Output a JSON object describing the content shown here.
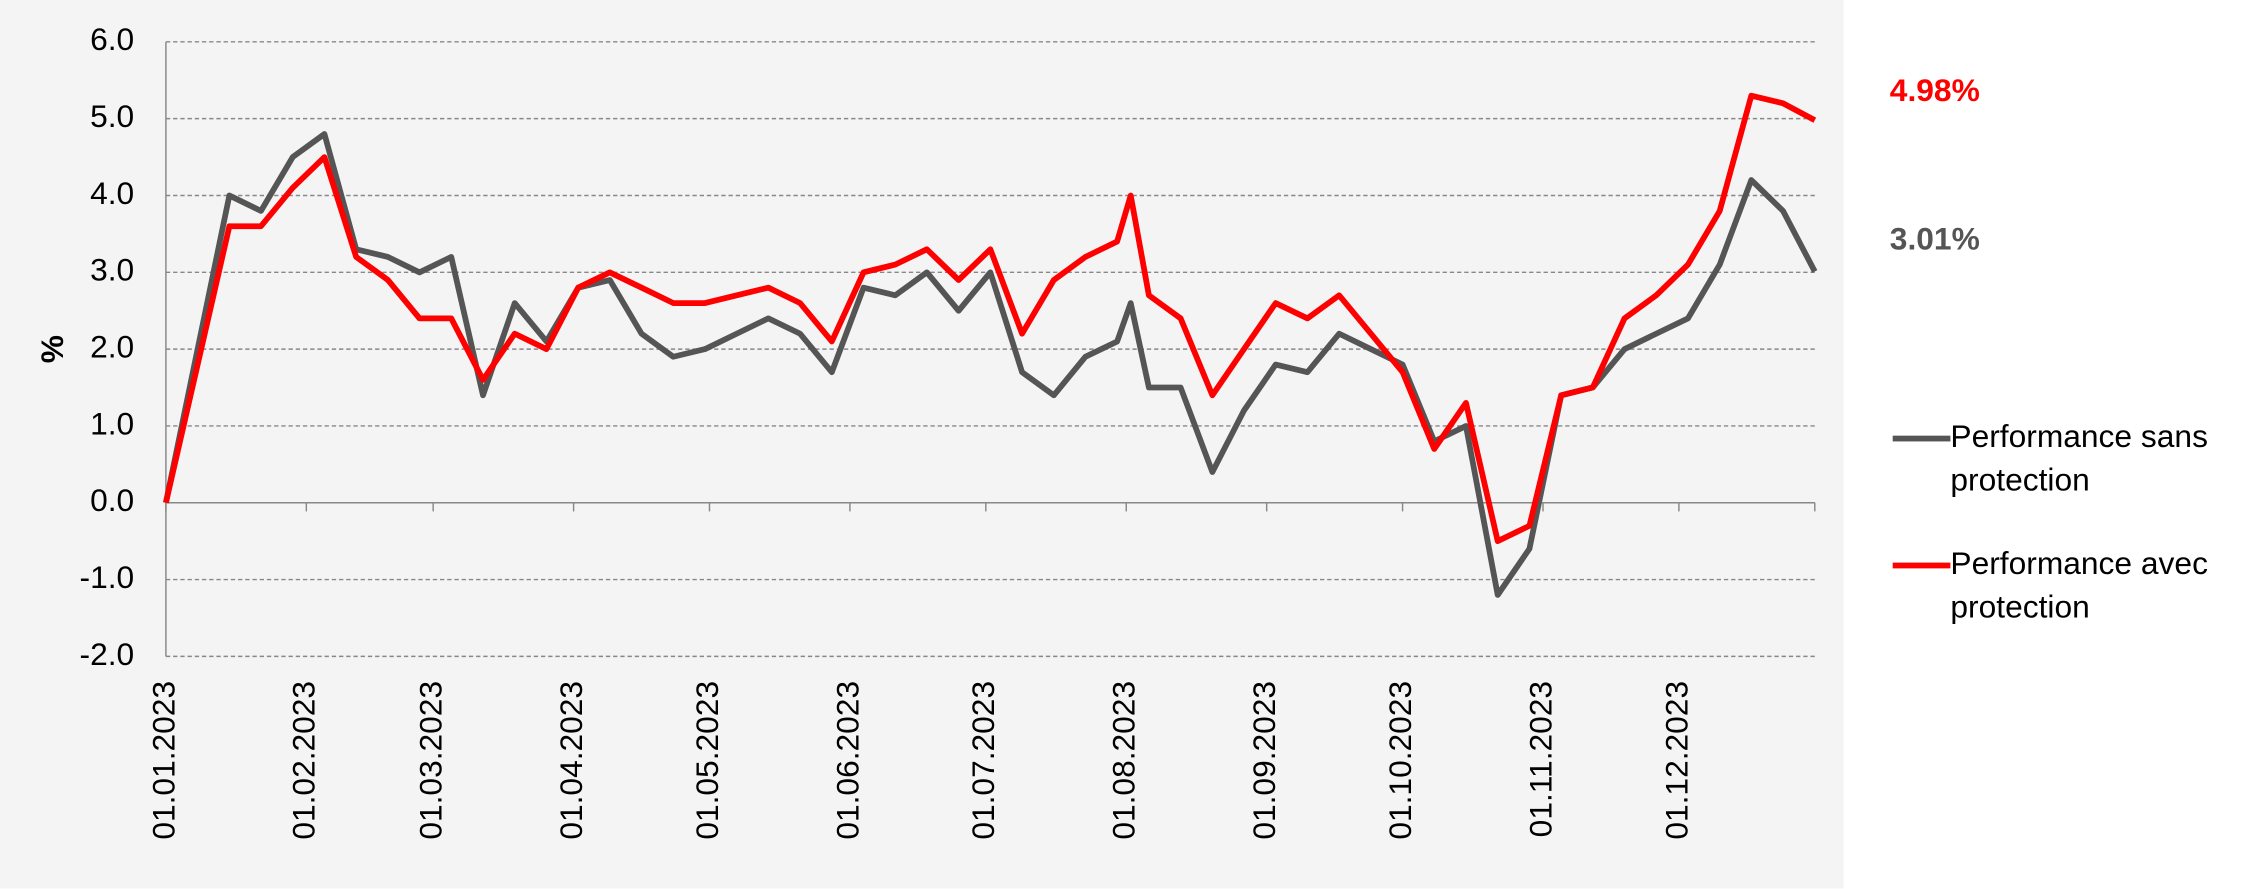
{
  "chart_data": {
    "type": "line",
    "y_label": "%",
    "x": [
      "01.01.2023",
      "08.01.2023",
      "15.01.2023",
      "22.01.2023",
      "29.01.2023",
      "05.02.2023",
      "12.02.2023",
      "19.02.2023",
      "26.02.2023",
      "05.03.2023",
      "12.03.2023",
      "19.03.2023",
      "26.03.2023",
      "02.04.2023",
      "09.04.2023",
      "16.04.2023",
      "23.04.2023",
      "30.04.2023",
      "07.05.2023",
      "14.05.2023",
      "21.05.2023",
      "28.05.2023",
      "04.06.2023",
      "11.06.2023",
      "18.06.2023",
      "25.06.2023",
      "02.07.2023",
      "09.07.2023",
      "16.07.2023",
      "23.07.2023",
      "30.07.2023",
      "02.08.2023",
      "06.08.2023",
      "13.08.2023",
      "20.08.2023",
      "27.08.2023",
      "03.09.2023",
      "10.09.2023",
      "17.09.2023",
      "24.09.2023",
      "01.10.2023",
      "08.10.2023",
      "15.10.2023",
      "22.10.2023",
      "29.10.2023",
      "05.11.2023",
      "12.11.2023",
      "19.11.2023",
      "26.11.2023",
      "03.12.2023",
      "10.12.2023",
      "17.12.2023",
      "24.12.2023",
      "31.12.2023"
    ],
    "series": [
      {
        "name": "Performance sans protection",
        "color": "#555555",
        "values": [
          0,
          2.0,
          4.0,
          3.8,
          4.5,
          4.8,
          3.3,
          3.2,
          3.0,
          3.2,
          1.4,
          2.6,
          2.1,
          2.8,
          2.9,
          2.2,
          1.9,
          2.0,
          2.2,
          2.4,
          2.2,
          1.7,
          2.8,
          2.7,
          3.0,
          2.5,
          3.0,
          1.7,
          1.4,
          1.9,
          2.1,
          2.6,
          1.5,
          1.5,
          0.4,
          1.2,
          1.8,
          1.7,
          2.2,
          2.0,
          1.8,
          0.8,
          1.0,
          -1.2,
          -0.6,
          1.4,
          1.5,
          2.0,
          2.2,
          2.4,
          3.1,
          4.2,
          3.8,
          3.01
        ]
      },
      {
        "name": "Performance avec protection",
        "color": "#ff0000",
        "values": [
          0,
          1.8,
          3.6,
          3.6,
          4.1,
          4.5,
          3.2,
          2.9,
          2.4,
          2.4,
          1.6,
          2.2,
          2.0,
          2.8,
          3.0,
          2.8,
          2.6,
          2.6,
          2.7,
          2.8,
          2.6,
          2.1,
          3.0,
          3.1,
          3.3,
          2.9,
          3.3,
          2.2,
          2.9,
          3.2,
          3.4,
          4.0,
          2.7,
          2.4,
          1.4,
          2.0,
          2.6,
          2.4,
          2.7,
          2.2,
          1.7,
          0.7,
          1.3,
          -0.5,
          -0.3,
          1.4,
          1.5,
          2.4,
          2.7,
          3.1,
          3.8,
          5.3,
          5.2,
          4.98
        ]
      }
    ],
    "annotations": [
      {
        "text": "4.98%",
        "color": "#ff0000"
      },
      {
        "text": "3.01%",
        "color": "#555555"
      }
    ],
    "xlim": [
      "01.01.2023",
      "31.12.2023"
    ],
    "xticks": [
      "01.01.2023",
      "01.02.2023",
      "01.03.2023",
      "01.04.2023",
      "01.05.2023",
      "01.06.2023",
      "01.07.2023",
      "01.08.2023",
      "01.09.2023",
      "01.10.2023",
      "01.11.2023",
      "01.12.2023"
    ],
    "ylim": [
      -2,
      6
    ],
    "yticks": [
      {
        "value": -2,
        "label": "-2.0"
      },
      {
        "value": -1,
        "label": "-1.0"
      },
      {
        "value": 0,
        "label": "0.0"
      },
      {
        "value": 1,
        "label": "1.0"
      },
      {
        "value": 2,
        "label": "2.0"
      },
      {
        "value": 3,
        "label": "3.0"
      },
      {
        "value": 4,
        "label": "4.0"
      },
      {
        "value": 5,
        "label": "5.0"
      },
      {
        "value": 6,
        "label": "6.0"
      }
    ],
    "grid": true,
    "legend": "right"
  }
}
